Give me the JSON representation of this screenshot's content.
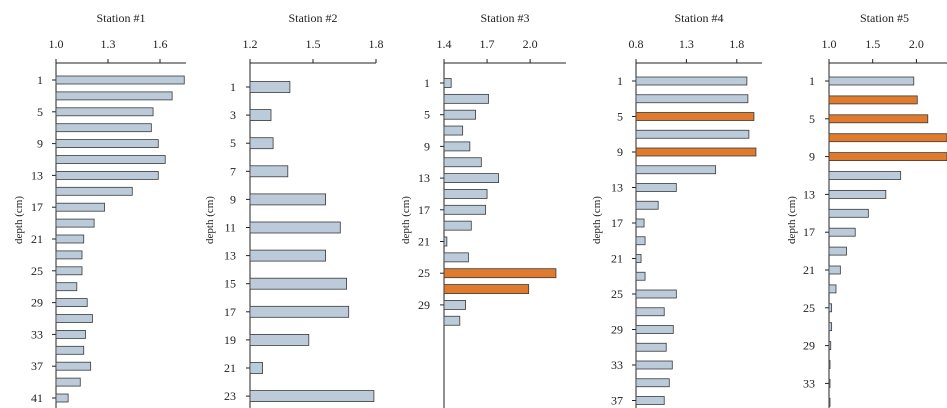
{
  "colors": {
    "bar_default": "#bccbda",
    "bar_highlight": "#e07b2d",
    "bar_stroke": "#3a3a3a",
    "axis": "#222222"
  },
  "chart_data": [
    {
      "type": "bar",
      "orientation": "horizontal",
      "title": "Station #1",
      "ylabel": "depth (cm)",
      "xlim": [
        1.0,
        1.75
      ],
      "xticks": [
        "1.0",
        "1.3",
        "1.6"
      ],
      "depth_ticks": [
        "1",
        "5",
        "9",
        "13",
        "17",
        "21",
        "25",
        "29",
        "33",
        "37",
        "41"
      ],
      "categories": [
        1,
        3,
        5,
        7,
        9,
        11,
        13,
        15,
        17,
        19,
        21,
        23,
        25,
        27,
        29,
        31,
        33,
        35,
        37,
        39,
        41
      ],
      "values": [
        1.74,
        1.67,
        1.56,
        1.55,
        1.59,
        1.63,
        1.59,
        1.44,
        1.28,
        1.22,
        1.16,
        1.15,
        1.15,
        1.12,
        1.18,
        1.21,
        1.17,
        1.16,
        1.2,
        1.14,
        1.07
      ],
      "highlighted": []
    },
    {
      "type": "bar",
      "orientation": "horizontal",
      "title": "Station #2",
      "ylabel": "depth (cm)",
      "xlim": [
        1.2,
        1.8
      ],
      "xticks": [
        "1.2",
        "1.5",
        "1.8"
      ],
      "depth_ticks": [
        "1",
        "3",
        "5",
        "7",
        "9",
        "11",
        "13",
        "15",
        "17",
        "19",
        "21",
        "23"
      ],
      "categories": [
        1,
        3,
        5,
        7,
        9,
        11,
        13,
        15,
        17,
        19,
        21,
        23
      ],
      "values": [
        1.39,
        1.3,
        1.31,
        1.38,
        1.56,
        1.63,
        1.56,
        1.66,
        1.67,
        1.48,
        1.26,
        1.79
      ],
      "highlighted": []
    },
    {
      "type": "bar",
      "orientation": "horizontal",
      "title": "Station #3",
      "ylabel": "depth (cm)",
      "xlim": [
        1.4,
        2.25
      ],
      "xticks": [
        "1.4",
        "1.7",
        "2.0"
      ],
      "depth_ticks": [
        "1",
        "5",
        "9",
        "13",
        "17",
        "21",
        "25",
        "29"
      ],
      "categories": [
        1,
        3,
        5,
        7,
        9,
        11,
        13,
        15,
        17,
        19,
        21,
        23,
        25,
        27,
        29,
        31
      ],
      "values": [
        1.45,
        1.71,
        1.62,
        1.53,
        1.58,
        1.66,
        1.78,
        1.7,
        1.69,
        1.59,
        1.42,
        1.57,
        2.18,
        1.99,
        1.55,
        1.51
      ],
      "highlighted": [
        25,
        27
      ]
    },
    {
      "type": "bar",
      "orientation": "horizontal",
      "title": "Station #4",
      "ylabel": "depth (cm)",
      "xlim": [
        0.8,
        2.05
      ],
      "xticks": [
        "0.8",
        "1.3",
        "1.8"
      ],
      "depth_ticks": [
        "1",
        "5",
        "9",
        "13",
        "17",
        "21",
        "25",
        "29",
        "33",
        "37"
      ],
      "categories": [
        1,
        3,
        5,
        7,
        9,
        11,
        13,
        15,
        17,
        19,
        21,
        23,
        25,
        27,
        29,
        31,
        33,
        35,
        37
      ],
      "values": [
        1.9,
        1.91,
        1.97,
        1.92,
        1.99,
        1.59,
        1.2,
        1.02,
        0.88,
        0.89,
        0.85,
        0.89,
        1.2,
        1.08,
        1.17,
        1.1,
        1.16,
        1.13,
        1.08
      ],
      "highlighted": [
        5,
        9
      ]
    },
    {
      "type": "bar",
      "orientation": "horizontal",
      "title": "Station #5",
      "ylabel": "depth (cm)",
      "xlim": [
        1.0,
        2.35
      ],
      "xticks": [
        "1.0",
        "1.5",
        "2.0"
      ],
      "depth_ticks": [
        "1",
        "5",
        "9",
        "13",
        "17",
        "21",
        "25",
        "29",
        "33"
      ],
      "categories": [
        1,
        3,
        5,
        7,
        9,
        11,
        13,
        15,
        17,
        19,
        21,
        23,
        25,
        27,
        29,
        31,
        33,
        35
      ],
      "values": [
        1.97,
        2.01,
        2.13,
        2.35,
        2.35,
        1.82,
        1.65,
        1.45,
        1.3,
        1.2,
        1.13,
        1.08,
        1.03,
        1.03,
        1.02,
        1.01,
        1.0,
        1.0
      ],
      "highlighted": [
        3,
        5,
        7,
        9
      ]
    }
  ]
}
